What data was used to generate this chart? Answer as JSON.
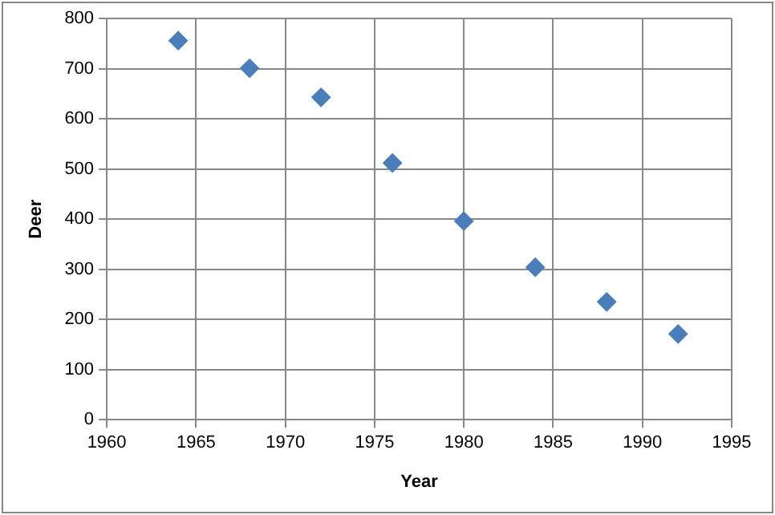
{
  "chart_data": {
    "type": "scatter",
    "xlabel": "Year",
    "ylabel": "Deer",
    "x": [
      1964,
      1968,
      1972,
      1976,
      1980,
      1984,
      1988,
      1992
    ],
    "values": [
      756,
      701,
      643,
      512,
      396,
      304,
      235,
      171
    ],
    "color": "#4a7ebb",
    "marker": "diamond",
    "xlim": [
      1960,
      1995
    ],
    "xticks": [
      1960,
      1965,
      1970,
      1975,
      1980,
      1985,
      1990,
      1995
    ],
    "ylim": [
      0,
      800
    ],
    "yticks": [
      0,
      100,
      200,
      300,
      400,
      500,
      600,
      700,
      800
    ],
    "grid": true
  }
}
